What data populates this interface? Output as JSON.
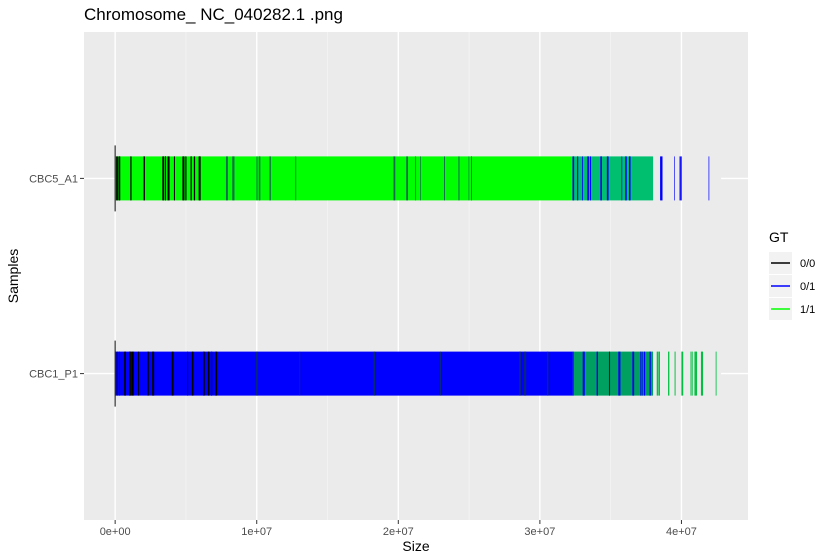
{
  "chart_data": {
    "type": "bar",
    "title": "Chromosome_ NC_040282.1 .png",
    "xlabel": "Size",
    "ylabel": "Samples",
    "xlim": [
      -2200000,
      44700000
    ],
    "x_ticks": [
      {
        "value": 0,
        "label": "0e+00"
      },
      {
        "value": 10000000,
        "label": "1e+07"
      },
      {
        "value": 20000000,
        "label": "2e+07"
      },
      {
        "value": 30000000,
        "label": "3e+07"
      },
      {
        "value": 40000000,
        "label": "4e+07"
      }
    ],
    "categories": [
      "CBC5_A1",
      "CBC1_P1"
    ],
    "legend": {
      "title": "GT",
      "placement": "right",
      "entries": [
        {
          "label": "0/0",
          "color": "#000000"
        },
        {
          "label": "0/1",
          "color": "#0000ff"
        },
        {
          "label": "1/1",
          "color": "#00ff00"
        }
      ]
    },
    "colors": {
      "panel": "#ebebeb",
      "grid_major": "#ffffff",
      "hom_ref": "#000000",
      "het": "#0000ff",
      "hom_alt": "#00ff00"
    },
    "series": [
      {
        "sample": "CBC5_A1",
        "start": 0,
        "end": 42800000,
        "segments": [
          {
            "start": 0,
            "end": 7300000,
            "base": "#00ff00",
            "mix": "#000000",
            "density": 0.45
          },
          {
            "start": 7300000,
            "end": 32300000,
            "base": "#00ff00",
            "mix": "#0e6e4a",
            "density": 0.12
          },
          {
            "start": 32300000,
            "end": 38000000,
            "base": "#00c070",
            "mix": "#0000ff",
            "density": 0.45
          },
          {
            "start": 38000000,
            "end": 42800000,
            "base": "#ebebeb",
            "mix": "#0000ff",
            "density": 0.35
          }
        ]
      },
      {
        "sample": "CBC1_P1",
        "start": 0,
        "end": 42800000,
        "segments": [
          {
            "start": 0,
            "end": 7300000,
            "base": "#0000ff",
            "mix": "#000000",
            "density": 0.55
          },
          {
            "start": 7300000,
            "end": 32300000,
            "base": "#0000ff",
            "mix": "#0a2a70",
            "density": 0.1
          },
          {
            "start": 32300000,
            "end": 38000000,
            "base": "#00a060",
            "mix": "#0000ff",
            "density": 0.45
          },
          {
            "start": 38000000,
            "end": 42800000,
            "base": "#ebebeb",
            "mix": "#00c040",
            "density": 0.35
          }
        ]
      }
    ]
  }
}
